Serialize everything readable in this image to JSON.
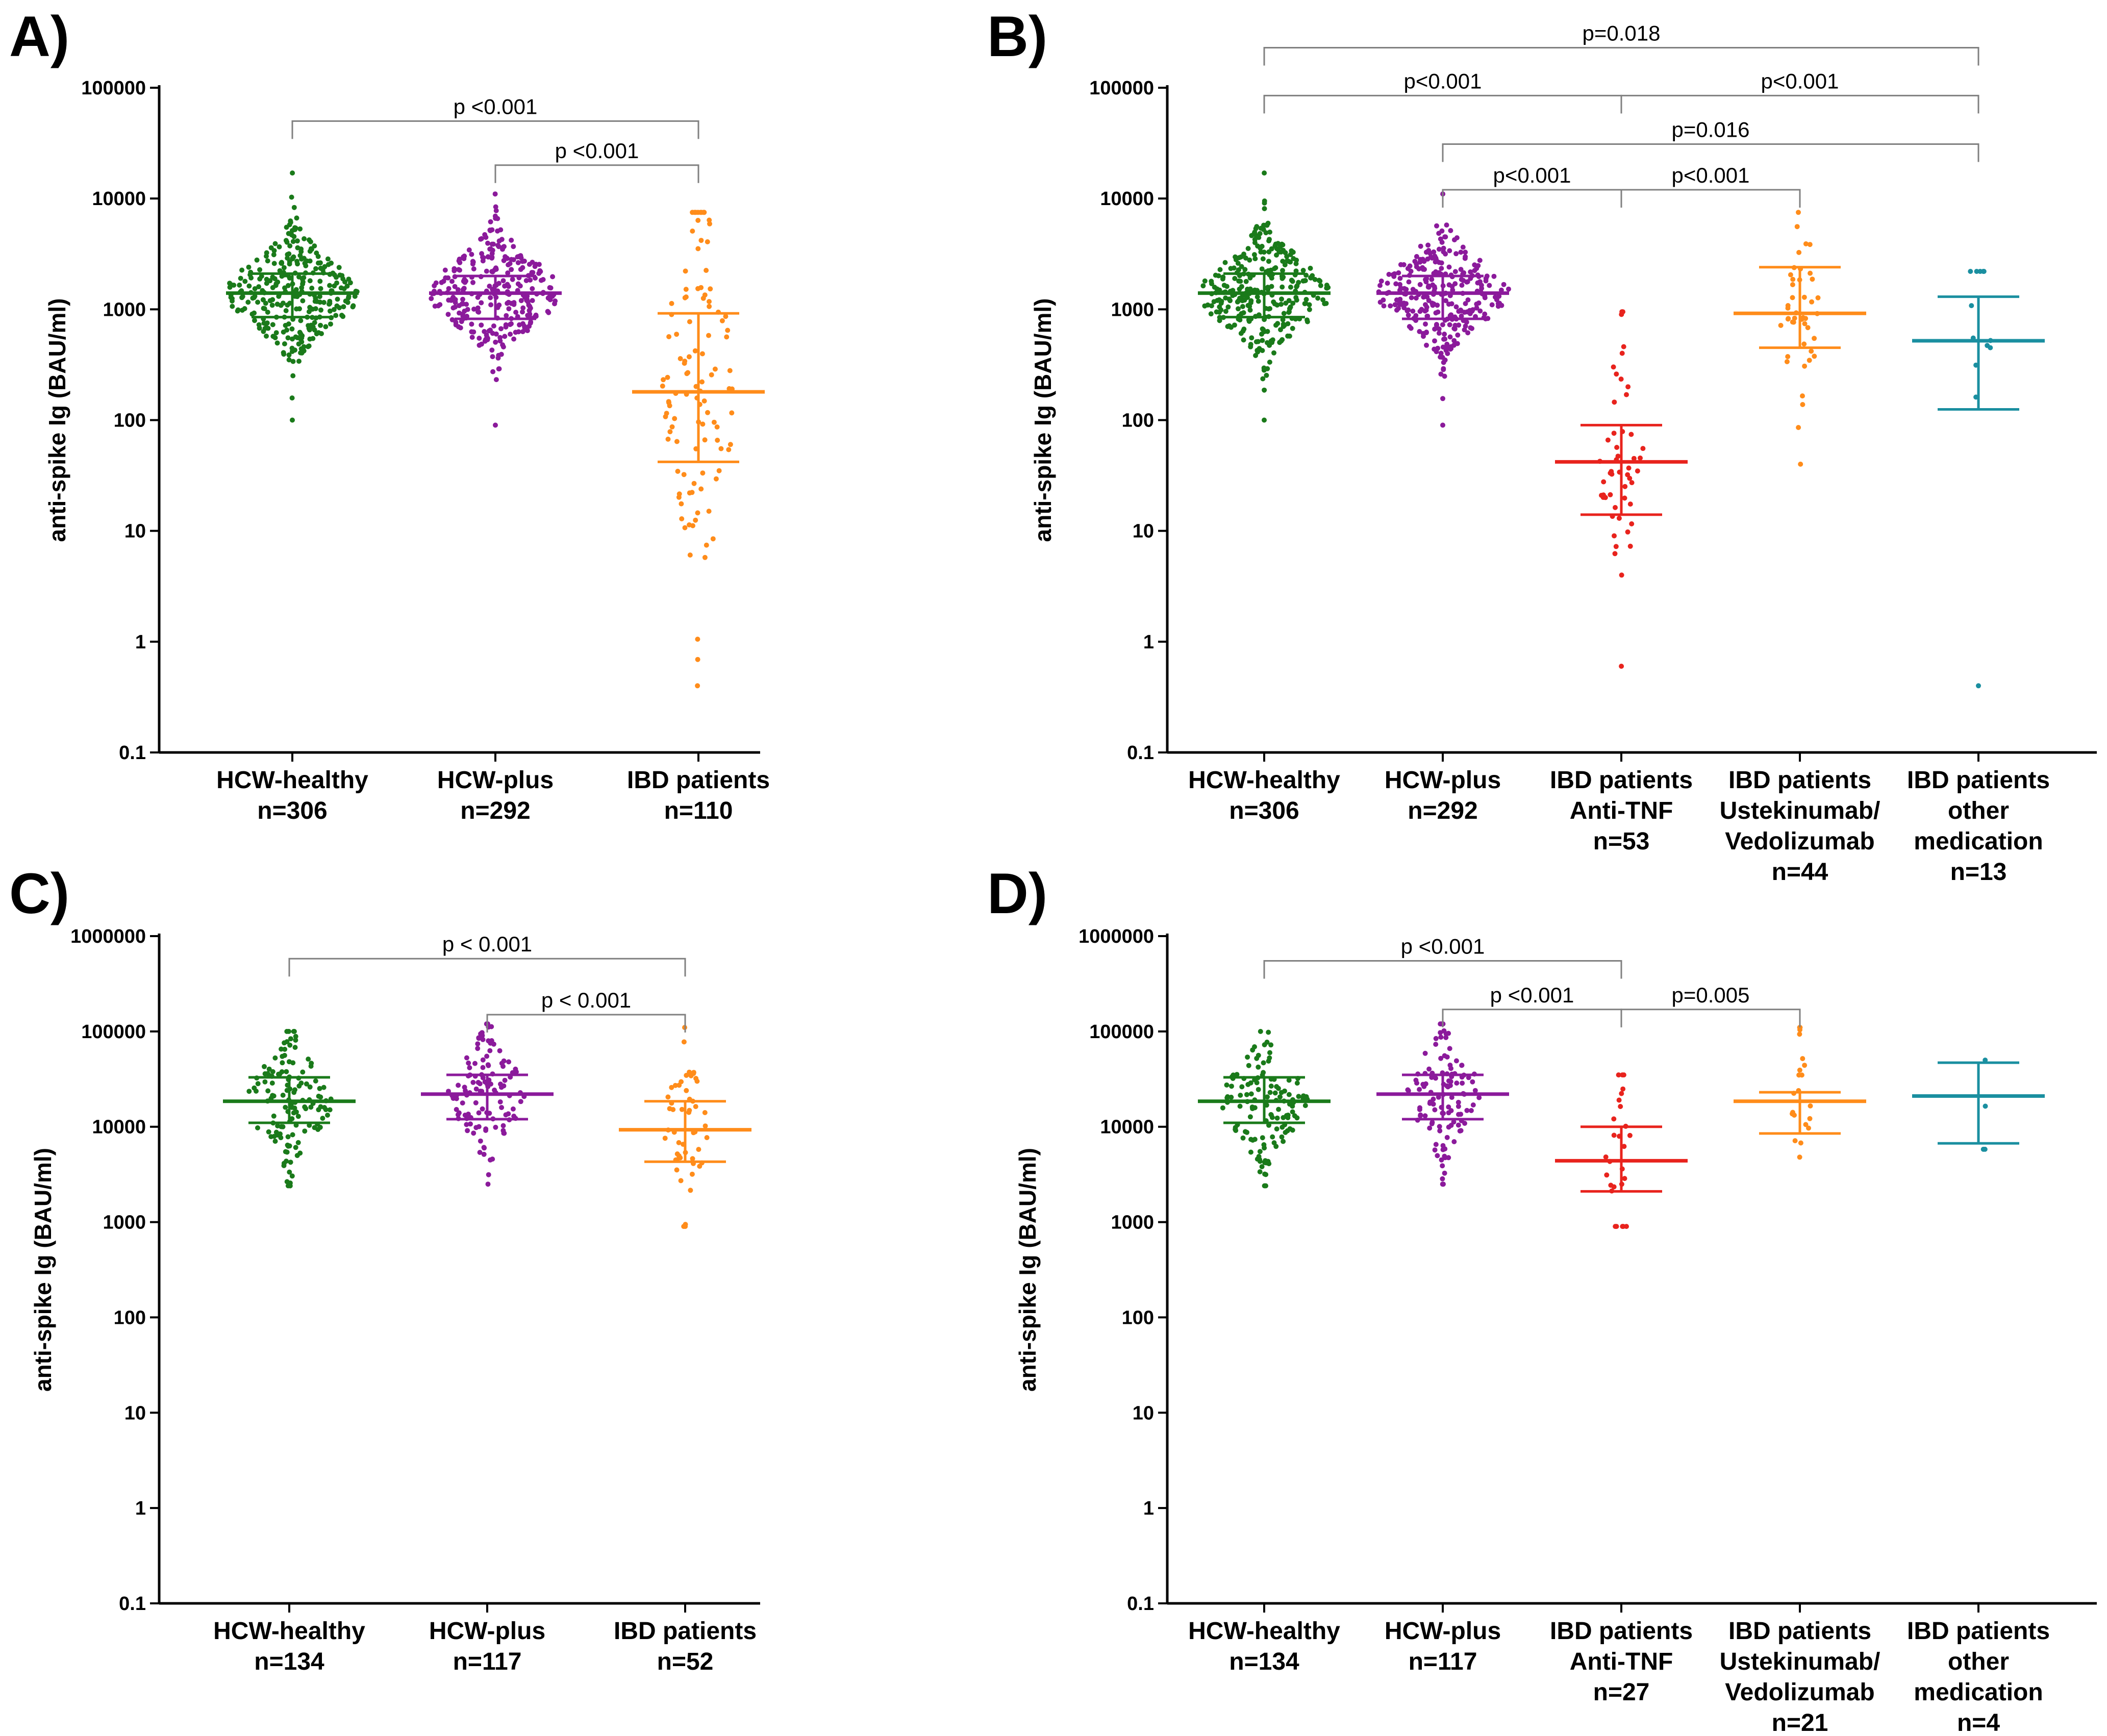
{
  "chart_data": [
    {
      "type": "scatter",
      "panel": "A)",
      "ylabel": "anti-spike Ig (BAU/ml)",
      "yscale": "log",
      "ylim": [
        0.1,
        100000
      ],
      "yticks": [
        "100000",
        "10000",
        "1000",
        "100",
        "10",
        "1",
        "0.1"
      ],
      "groups": [
        {
          "label": [
            "HCW-healthy",
            "n=306"
          ],
          "color": "#1a7a1a",
          "n": 306,
          "median": 1400,
          "q1": 850,
          "q3": 2100,
          "min": 100,
          "max": 17000
        },
        {
          "label": [
            "HCW-plus",
            "n=292"
          ],
          "color": "#8b1a9b",
          "n": 292,
          "median": 1400,
          "q1": 820,
          "q3": 2000,
          "min": 90,
          "max": 11000
        },
        {
          "label": [
            "IBD patients",
            "n=110"
          ],
          "color": "#ff8c1a",
          "n": 110,
          "median": 180,
          "q1": 42,
          "q3": 920,
          "min": 0.4,
          "max": 7500
        }
      ],
      "comparisons": [
        {
          "from": 0,
          "to": 2,
          "text": "p <0.001",
          "y": 50000
        },
        {
          "from": 1,
          "to": 2,
          "text": "p <0.001",
          "y": 20000
        }
      ]
    },
    {
      "type": "scatter",
      "panel": "B)",
      "ylabel": "anti-spike Ig (BAU/ml)",
      "yscale": "log",
      "ylim": [
        0.1,
        100000
      ],
      "yticks": [
        "100000",
        "10000",
        "1000",
        "100",
        "10",
        "1",
        "0.1"
      ],
      "groups": [
        {
          "label": [
            "HCW-healthy",
            "n=306"
          ],
          "color": "#1a7a1a",
          "n": 306,
          "median": 1400,
          "q1": 850,
          "q3": 2100,
          "min": 100,
          "max": 17000
        },
        {
          "label": [
            "HCW-plus",
            "n=292"
          ],
          "color": "#8b1a9b",
          "n": 292,
          "median": 1400,
          "q1": 820,
          "q3": 2000,
          "min": 90,
          "max": 11000
        },
        {
          "label": [
            "IBD patients",
            "Anti-TNF",
            "n=53"
          ],
          "color": "#e8231d",
          "n": 53,
          "median": 42,
          "q1": 14,
          "q3": 90,
          "min": 0.6,
          "max": 950
        },
        {
          "label": [
            "IBD patients",
            "Ustekinumab/",
            "Vedolizumab",
            "n=44"
          ],
          "color": "#ff8c1a",
          "n": 44,
          "median": 920,
          "q1": 450,
          "q3": 2400,
          "min": 40,
          "max": 7500
        },
        {
          "label": [
            "IBD patients",
            "other",
            "medication",
            "n=13"
          ],
          "color": "#1a8fa0",
          "n": 13,
          "median": 520,
          "q1": 125,
          "q3": 1300,
          "min": 0.4,
          "max": 2200
        }
      ],
      "comparisons": [
        {
          "from": 0,
          "to": 4,
          "text": "p=0.018",
          "y": 230000
        },
        {
          "from": 0,
          "to": 2,
          "text": "p<0.001",
          "y": 85000
        },
        {
          "from": 2,
          "to": 4,
          "text": "p<0.001",
          "y": 85000
        },
        {
          "from": 1,
          "to": 4,
          "text": "p=0.016",
          "y": 31000
        },
        {
          "from": 1,
          "to": 2,
          "text": "p<0.001",
          "y": 12000
        },
        {
          "from": 2,
          "to": 3,
          "text": "p<0.001",
          "y": 12000
        }
      ]
    },
    {
      "type": "scatter",
      "panel": "C)",
      "ylabel": "anti-spike Ig (BAU/ml)",
      "yscale": "log",
      "ylim": [
        0.1,
        1000000
      ],
      "yticks": [
        "1000000",
        "100000",
        "10000",
        "1000",
        "100",
        "10",
        "1",
        "0.1"
      ],
      "groups": [
        {
          "label": [
            "HCW-healthy",
            "n=134"
          ],
          "color": "#1a7a1a",
          "n": 134,
          "median": 18500,
          "q1": 11000,
          "q3": 33000,
          "min": 2400,
          "max": 100000
        },
        {
          "label": [
            "HCW-plus",
            "n=117"
          ],
          "color": "#8b1a9b",
          "n": 117,
          "median": 22000,
          "q1": 12000,
          "q3": 35000,
          "min": 2500,
          "max": 120000
        },
        {
          "label": [
            "IBD patients",
            "n=52"
          ],
          "color": "#ff8c1a",
          "n": 52,
          "median": 9300,
          "q1": 4300,
          "q3": 18500,
          "min": 900,
          "max": 110000
        }
      ],
      "comparisons": [
        {
          "from": 0,
          "to": 2,
          "text": "p < 0.001",
          "y": 580000
        },
        {
          "from": 1,
          "to": 2,
          "text": "p < 0.001",
          "y": 150000
        }
      ]
    },
    {
      "type": "scatter",
      "panel": "D)",
      "ylabel": "anti-spike Ig (BAU/ml)",
      "yscale": "log",
      "ylim": [
        0.1,
        1000000
      ],
      "yticks": [
        "1000000",
        "100000",
        "10000",
        "1000",
        "100",
        "10",
        "1",
        "0.1"
      ],
      "groups": [
        {
          "label": [
            "HCW-healthy",
            "n=134"
          ],
          "color": "#1a7a1a",
          "n": 134,
          "median": 18500,
          "q1": 11000,
          "q3": 33000,
          "min": 2400,
          "max": 100000
        },
        {
          "label": [
            "HCW-plus",
            "n=117"
          ],
          "color": "#8b1a9b",
          "n": 117,
          "median": 22000,
          "q1": 12000,
          "q3": 35000,
          "min": 2500,
          "max": 120000
        },
        {
          "label": [
            "IBD patients",
            "Anti-TNF",
            "n=27"
          ],
          "color": "#e8231d",
          "n": 27,
          "median": 4400,
          "q1": 2100,
          "q3": 10000,
          "min": 900,
          "max": 35000
        },
        {
          "label": [
            "IBD patients",
            "Ustekinumab/",
            "Vedolizumab",
            "n=21"
          ],
          "color": "#ff8c1a",
          "n": 21,
          "median": 18500,
          "q1": 8500,
          "q3": 23000,
          "min": 4800,
          "max": 110000
        },
        {
          "label": [
            "IBD patients",
            "other",
            "medication",
            "n=4"
          ],
          "color": "#1a8fa0",
          "n": 4,
          "median": 21000,
          "q1": 6700,
          "q3": 47000,
          "min": 5800,
          "max": 50000
        }
      ],
      "comparisons": [
        {
          "from": 0,
          "to": 2,
          "text": "p <0.001",
          "y": 550000
        },
        {
          "from": 1,
          "to": 2,
          "text": "p <0.001",
          "y": 170000
        },
        {
          "from": 2,
          "to": 3,
          "text": "p=0.005",
          "y": 170000
        }
      ]
    }
  ]
}
